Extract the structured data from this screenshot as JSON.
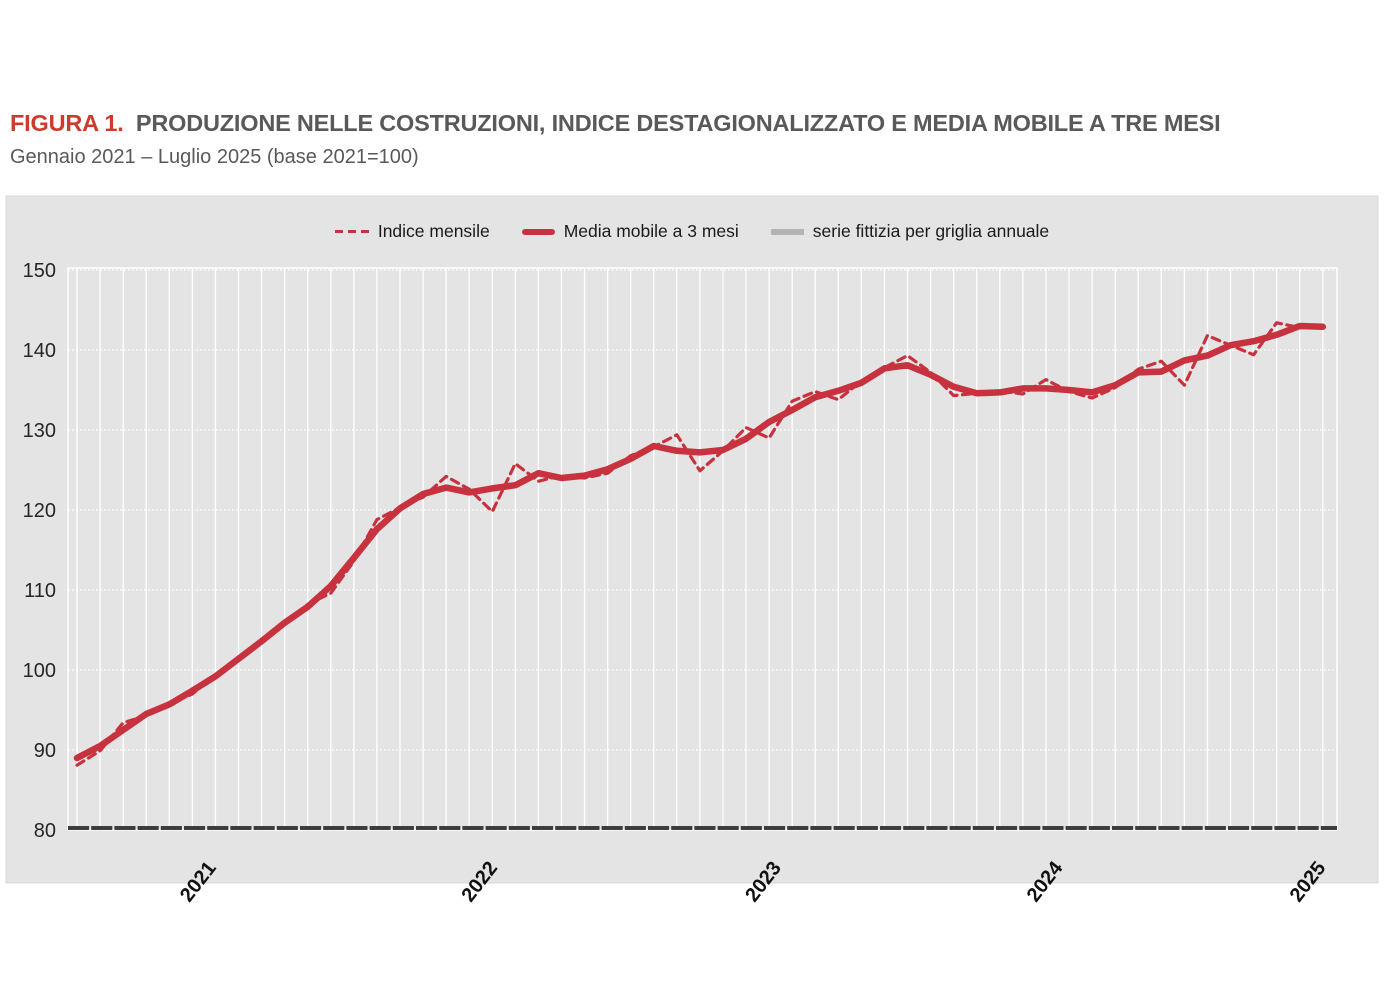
{
  "header": {
    "figure_label": "FIGURA 1.",
    "title": "PRODUZIONE NELLE COSTRUZIONI, INDICE DESTAGIONALIZZATO E MEDIA MOBILE A TRE MESI",
    "subtitle": "Gennaio 2021 – Luglio 2025 (base 2021=100)",
    "figure_label_color": "#CF3B2B",
    "title_color": "#595959"
  },
  "legend": {
    "position": "top-center",
    "items": [
      {
        "label": "Indice mensile",
        "swatch": "dashed-red",
        "color": "#C8323E"
      },
      {
        "label": "Media mobile a 3 mesi",
        "swatch": "solid-red",
        "color": "#C8323E"
      },
      {
        "label": "serie fittizia per griglia annuale",
        "swatch": "solid-gray",
        "color": "#B3B3B3"
      }
    ]
  },
  "chart_data": {
    "type": "line",
    "title": "PRODUZIONE NELLE COSTRUZIONI, INDICE DESTAGIONALIZZATO E MEDIA MOBILE A TRE MESI",
    "subtitle": "Gennaio 2021 – Luglio 2025 (base 2021=100)",
    "xlabel": "",
    "ylabel": "",
    "ylim": [
      80,
      150
    ],
    "yticks": [
      80,
      90,
      100,
      110,
      120,
      130,
      140,
      150
    ],
    "grid": true,
    "legend_position": "top",
    "colors": {
      "panel_bg": "#E4E4E4",
      "panel_border": "#D9D9D9",
      "gridline": "#FFFFFF",
      "axis_line": "#3D3D3D",
      "tick_label": "#262626",
      "series_red": "#C8323E",
      "series_gray": "#B3B3B3"
    },
    "months": [
      "2021-01",
      "2021-02",
      "2021-03",
      "2021-04",
      "2021-05",
      "2021-06",
      "2021-07",
      "2021-08",
      "2021-09",
      "2021-10",
      "2021-11",
      "2021-12",
      "2022-01",
      "2022-02",
      "2022-03",
      "2022-04",
      "2022-05",
      "2022-06",
      "2022-07",
      "2022-08",
      "2022-09",
      "2022-10",
      "2022-11",
      "2022-12",
      "2023-01",
      "2023-02",
      "2023-03",
      "2023-04",
      "2023-05",
      "2023-06",
      "2023-07",
      "2023-08",
      "2023-09",
      "2023-10",
      "2023-11",
      "2023-12",
      "2024-01",
      "2024-02",
      "2024-03",
      "2024-04",
      "2024-05",
      "2024-06",
      "2024-07",
      "2024-08",
      "2024-09",
      "2024-10",
      "2024-11",
      "2024-12",
      "2025-01",
      "2025-02",
      "2025-03",
      "2025-04",
      "2025-05",
      "2025-06",
      "2025-07"
    ],
    "series": [
      {
        "name": "Indice mensile",
        "line_style": "dashed",
        "color": "#C8323E",
        "stroke_width": 3.2,
        "values": [
          88.1,
          89.9,
          93.4,
          94.3,
          95.8,
          97.0,
          99.3,
          101.2,
          103.6,
          106.0,
          108.2,
          109.6,
          113.6,
          118.8,
          120.3,
          121.6,
          124.2,
          122.6,
          119.8,
          125.8,
          123.6,
          124.3,
          124.0,
          124.6,
          126.8,
          127.9,
          129.4,
          124.9,
          127.4,
          130.3,
          129.0,
          133.6,
          134.8,
          133.8,
          136.1,
          137.8,
          139.3,
          137.2,
          134.3,
          134.6,
          134.9,
          134.5,
          136.3,
          134.8,
          134.0,
          135.3,
          137.6,
          138.6,
          135.6,
          141.8,
          140.6,
          139.4,
          143.4,
          142.8,
          142.9
        ]
      },
      {
        "name": "Media mobile a 3 mesi",
        "line_style": "solid",
        "color": "#C8323E",
        "stroke_width": 6.5,
        "values": [
          89.0,
          90.5,
          92.5,
          94.5,
          95.7,
          97.4,
          99.2,
          101.4,
          103.6,
          105.9,
          107.9,
          110.5,
          114.0,
          117.6,
          120.2,
          122.0,
          122.8,
          122.2,
          122.7,
          123.1,
          124.6,
          124.0,
          124.3,
          125.1,
          126.4,
          128.0,
          127.4,
          127.2,
          127.5,
          128.9,
          131.0,
          132.5,
          134.1,
          134.9,
          135.9,
          137.7,
          138.1,
          136.9,
          135.4,
          134.6,
          134.7,
          135.2,
          135.2,
          135.0,
          134.7,
          135.6,
          137.2,
          137.3,
          138.7,
          139.3,
          140.6,
          141.1,
          141.9,
          143.0,
          142.9
        ]
      },
      {
        "name": "serie fittizia per griglia annuale",
        "line_style": "solid",
        "color": "#B3B3B3",
        "stroke_width": 6,
        "role": "annual-gridline-helper",
        "values": []
      }
    ],
    "year_labels": [
      {
        "label": "2021",
        "month_index": 5.8
      },
      {
        "label": "2022",
        "month_index": 18.0
      },
      {
        "label": "2023",
        "month_index": 30.3
      },
      {
        "label": "2024",
        "month_index": 42.5
      },
      {
        "label": "2025",
        "month_index": 53.9
      }
    ]
  }
}
